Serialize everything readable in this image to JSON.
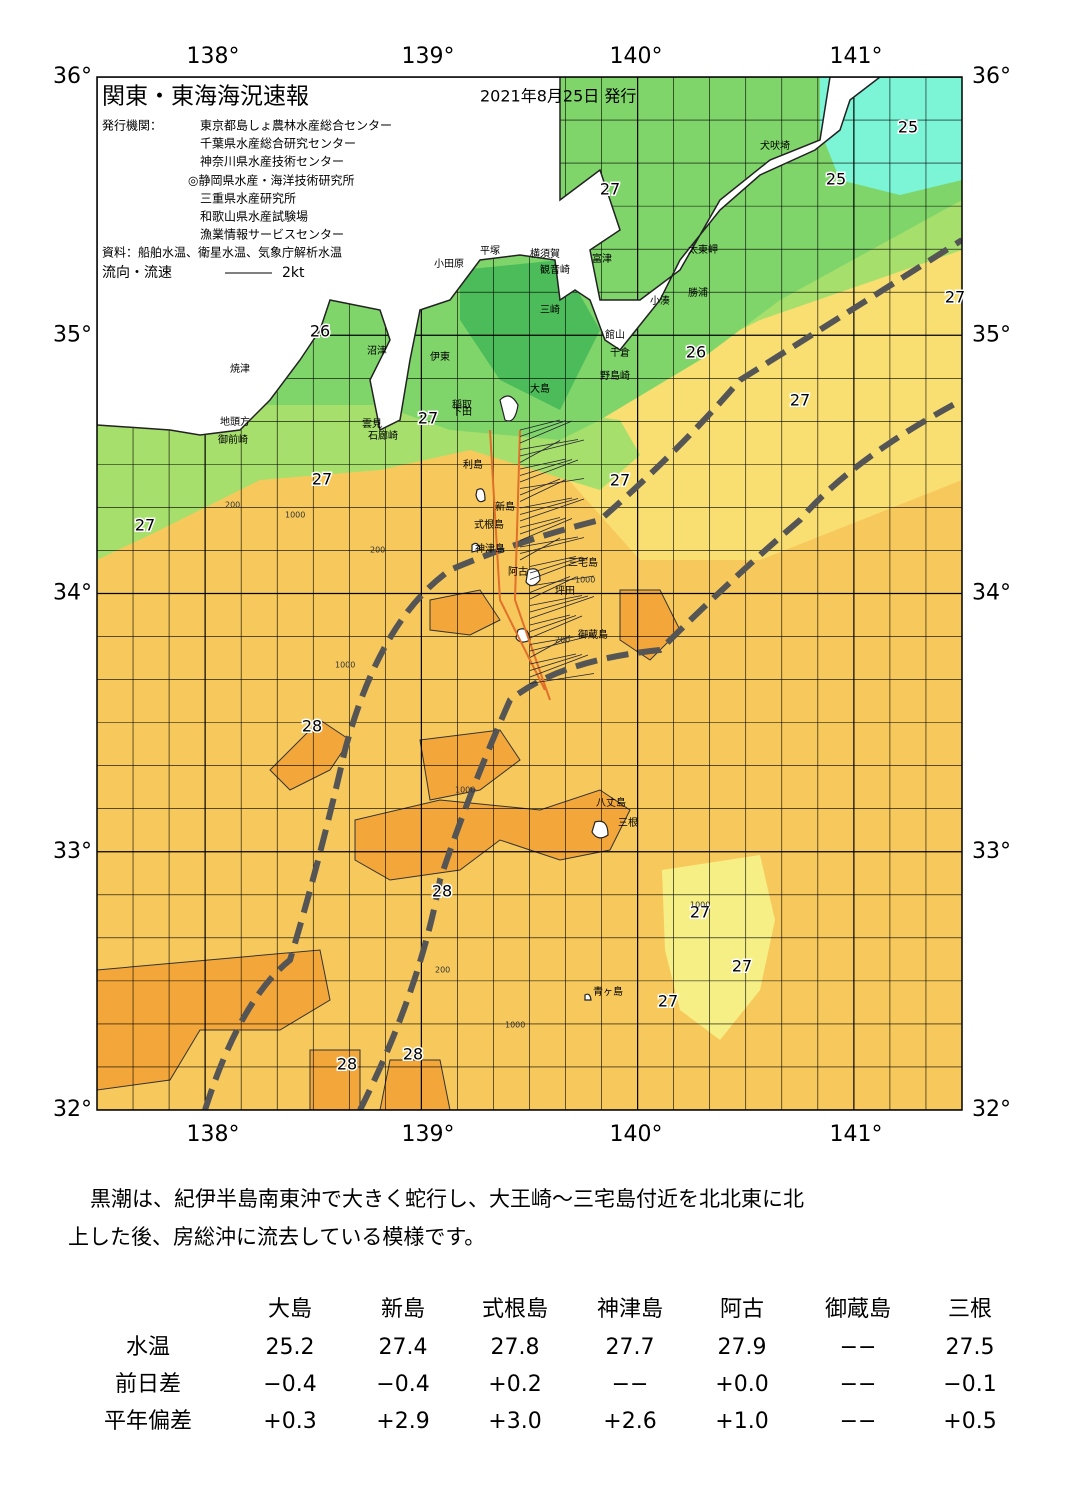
{
  "header": {
    "title": "関東・東海海況速報",
    "date": "2021年8月25日 発行",
    "publisher_label": "発行機関：",
    "publishers": [
      "東京都島しょ農林水産総合センター",
      "千葉県水産総合研究センター",
      "神奈川県水産技術センター",
      "◎静岡県水産・海洋技術研究所",
      "三重県水産研究所",
      "和歌山県水産試験場",
      "漁業情報サービスセンター"
    ],
    "source": "資料：船舶水温、衛星水温、気象庁解析水温",
    "legend_label": "流向・流速",
    "legend_scale": "2kt"
  },
  "map": {
    "lon_labels": [
      "138°",
      "139°",
      "140°",
      "141°"
    ],
    "lat_labels": [
      "36°",
      "35°",
      "34°",
      "33°",
      "32°"
    ],
    "places": [
      "犬吠埼",
      "太東岬",
      "勝浦",
      "小湊",
      "富津",
      "館山",
      "千倉",
      "野島崎",
      "横須賀",
      "観音崎",
      "平塚",
      "小田原",
      "三崎",
      "伊東",
      "沼津",
      "焼津",
      "地頭方",
      "御前崎",
      "大島",
      "稲取",
      "下田",
      "石廊崎",
      "雲見",
      "利島",
      "新島",
      "式根島",
      "神津島",
      "三宅島",
      "阿古",
      "坪田",
      "御蔵島",
      "八丈島",
      "三根",
      "青ヶ島"
    ],
    "contour_labels": [
      25,
      25,
      27,
      27,
      26,
      26,
      27,
      27,
      27,
      27,
      27,
      28,
      28,
      28,
      28,
      27,
      27,
      27
    ],
    "depth_labels": [
      200,
      1000,
      200,
      1000,
      1000,
      200,
      1000,
      1000,
      200,
      1000
    ]
  },
  "comment": [
    "黒潮は、紀伊半島南東沖で大きく蛇行し、大王崎～三宅島付近を北北東に北",
    "上した後、房総沖に流去している模様です。"
  ],
  "table": {
    "columns": [
      "大島",
      "新島",
      "式根島",
      "神津島",
      "阿古",
      "御蔵島",
      "三根"
    ],
    "rows": [
      {
        "label": "水温",
        "cells": [
          "25.2",
          "27.4",
          "27.8",
          "27.7",
          "27.9",
          "−−",
          "27.5"
        ]
      },
      {
        "label": "前日差",
        "cells": [
          "−0.4",
          "−0.4",
          "+0.2",
          "−−",
          "+0.0",
          "−−",
          "−0.1"
        ]
      },
      {
        "label": "平年偏差",
        "cells": [
          "+0.3",
          "+2.9",
          "+3.0",
          "+2.6",
          "+1.0",
          "−−",
          "+0.5"
        ]
      }
    ]
  }
}
